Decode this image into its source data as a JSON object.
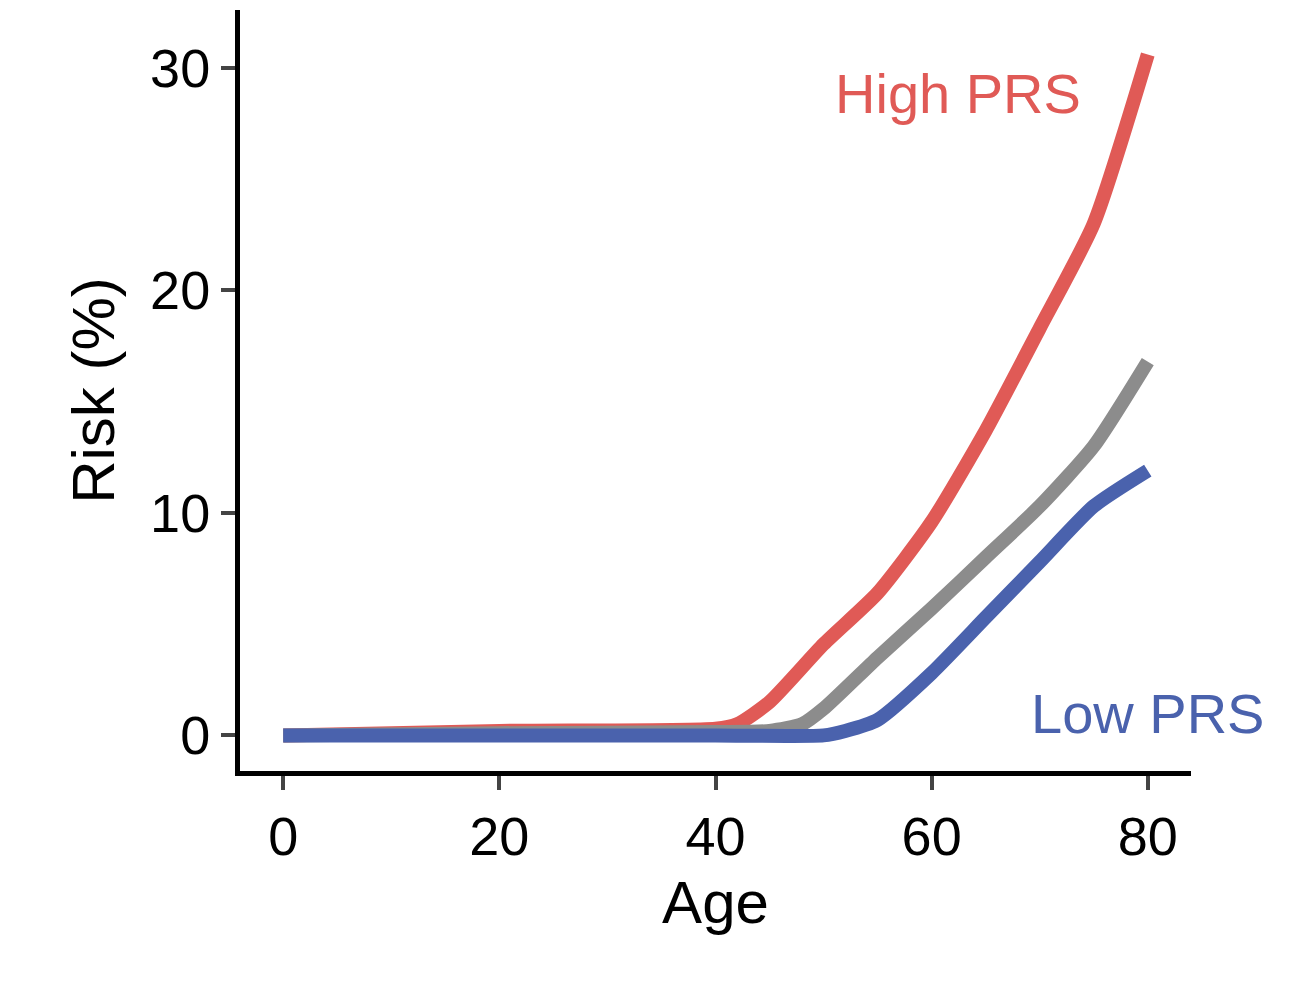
{
  "chart_data": {
    "type": "line",
    "xlabel": "Age",
    "ylabel": "Risk (%)",
    "xlim": [
      -4,
      84
    ],
    "xticks": [
      0,
      20,
      40,
      60,
      80
    ],
    "ylim": [
      -1.6,
      32.6
    ],
    "yticks": [
      0,
      10,
      20,
      30
    ],
    "grid": false,
    "legend": false,
    "marker": "none",
    "line_style": "solid",
    "series": [
      {
        "name": "High PRS",
        "color": "#e05a56",
        "x": [
          0,
          20,
          40,
          42,
          45,
          50,
          55,
          60,
          65,
          70,
          75,
          80
        ],
        "values": [
          0,
          0.2,
          0.3,
          0.5,
          1.5,
          4.1,
          6.4,
          9.6,
          13.7,
          18.3,
          23,
          30.6
        ]
      },
      {
        "color": "#8c8c8c",
        "x": [
          0,
          20,
          40,
          45,
          48,
          50,
          55,
          60,
          65,
          70,
          75,
          80
        ],
        "values": [
          0,
          0.1,
          0.15,
          0.2,
          0.5,
          1.2,
          3.5,
          5.7,
          8,
          10.3,
          13,
          16.8
        ]
      },
      {
        "name": "Low PRS",
        "color": "#4a62ad",
        "x": [
          0,
          20,
          40,
          50,
          52,
          55,
          60,
          65,
          70,
          75,
          80
        ],
        "values": [
          0,
          0,
          0,
          0,
          0.2,
          0.7,
          2.8,
          5.3,
          7.8,
          10.3,
          11.9
        ]
      }
    ]
  }
}
